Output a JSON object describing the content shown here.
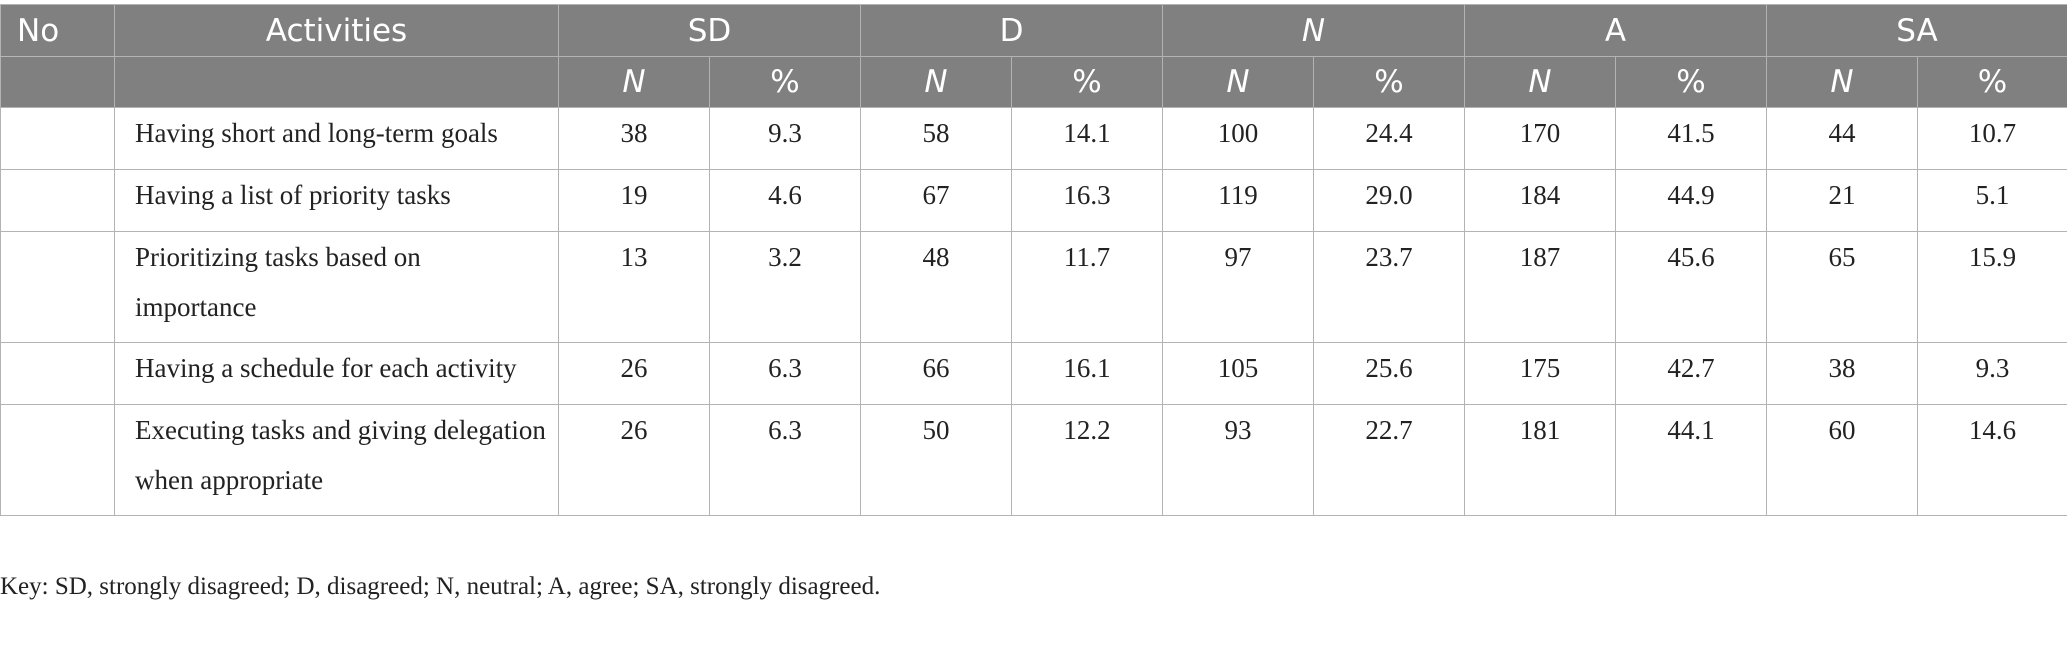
{
  "table": {
    "header1": [
      "No",
      "Activities",
      "SD",
      "D",
      "N",
      "A",
      "SA"
    ],
    "header2": [
      "N",
      "%",
      "N",
      "%",
      "N",
      "%",
      "N",
      "%",
      "N",
      "%"
    ],
    "rows": [
      {
        "no": "",
        "activity": "Having short and long-term goals",
        "values": [
          "38",
          "9.3",
          "58",
          "14.1",
          "100",
          "24.4",
          "170",
          "41.5",
          "44",
          "10.7"
        ]
      },
      {
        "no": "",
        "activity": "Having a list of priority tasks",
        "values": [
          "19",
          "4.6",
          "67",
          "16.3",
          "119",
          "29.0",
          "184",
          "44.9",
          "21",
          "5.1"
        ]
      },
      {
        "no": "",
        "activity": "Prioritizing tasks based on importance",
        "values": [
          "13",
          "3.2",
          "48",
          "11.7",
          "97",
          "23.7",
          "187",
          "45.6",
          "65",
          "15.9"
        ]
      },
      {
        "no": "",
        "activity": "Having a schedule for each activity",
        "values": [
          "26",
          "6.3",
          "66",
          "16.1",
          "105",
          "25.6",
          "175",
          "42.7",
          "38",
          "9.3"
        ]
      },
      {
        "no": "",
        "activity": "Executing tasks and giving delegation when appropriate",
        "values": [
          "26",
          "6.3",
          "50",
          "12.2",
          "93",
          "22.7",
          "181",
          "44.1",
          "60",
          "14.6"
        ]
      }
    ]
  },
  "footnote": "Key: SD, strongly disagreed; D, disagreed; N, neutral; A, agree; SA, strongly disagreed.",
  "colors": {
    "header_bg": "#7f807f",
    "header_text": "#ffffff",
    "border": "#b3b3b3"
  }
}
